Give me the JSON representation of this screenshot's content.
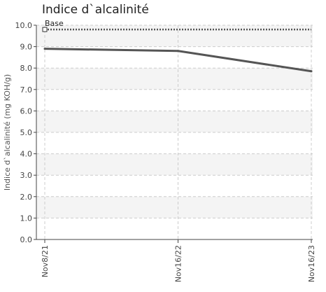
{
  "chart_data": {
    "type": "line",
    "title": "Indice d`alcalinité",
    "xlabel": "",
    "ylabel": "Indice d`alcalinité (mg KOH/g)",
    "categories": [
      "Nov8/21",
      "Nov16/22",
      "Nov16/23"
    ],
    "ylim": [
      0,
      10
    ],
    "y_ticks": [
      "0.0",
      "1.0",
      "2.0",
      "3.0",
      "4.0",
      "5.0",
      "6.0",
      "7.0",
      "8.0",
      "9.0",
      "10.0"
    ],
    "grid": true,
    "series": [
      {
        "name": "",
        "values": [
          8.9,
          8.8,
          7.85
        ]
      }
    ],
    "baseline": {
      "name": "Base",
      "value": 9.8
    },
    "colors": {
      "series": "#555555",
      "baseline": "#555555",
      "band": "#f4f4f4",
      "grid": "#cccccc"
    }
  }
}
